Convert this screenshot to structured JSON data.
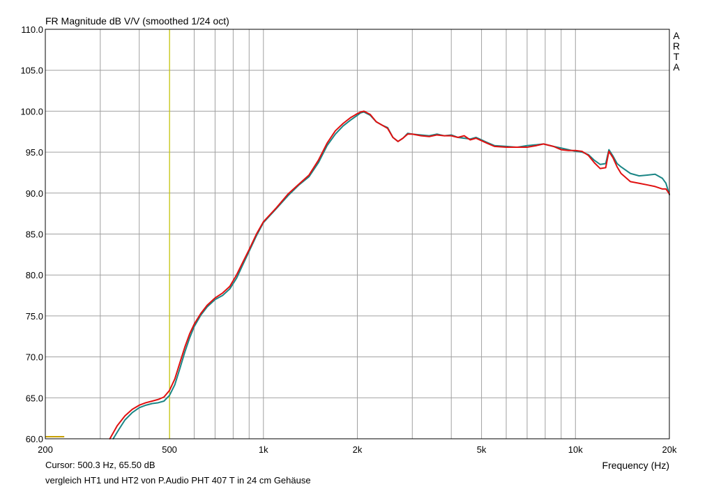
{
  "title": "FR Magnitude dB V/V (smoothed 1/24 oct)",
  "brand": [
    "A",
    "R",
    "T",
    "A"
  ],
  "cursor_text": "Cursor: 500.3 Hz, 65.50 dB",
  "caption": "vergleich HT1 und HT2 von P.Audio PHT 407 T in 24 cm Gehäuse",
  "chart_data": {
    "type": "line",
    "title": "FR Magnitude dB V/V (smoothed 1/24 oct)",
    "xlabel": "Frequency (Hz)",
    "ylabel": "",
    "x_scale": "log",
    "xlim": [
      200,
      20000
    ],
    "ylim": [
      60,
      110
    ],
    "grid": true,
    "x_tick_values": [
      200,
      500,
      1000,
      2000,
      5000,
      10000,
      20000
    ],
    "x_tick_labels": [
      "200",
      "500",
      "1k",
      "2k",
      "5k",
      "10k",
      "20k"
    ],
    "x_minor_grid": [
      300,
      400,
      600,
      700,
      800,
      900,
      3000,
      4000,
      6000,
      7000,
      8000,
      9000
    ],
    "y_tick_values": [
      60,
      65,
      70,
      75,
      80,
      85,
      90,
      95,
      100,
      105,
      110
    ],
    "y_tick_labels": [
      "60.0",
      "65.0",
      "70.0",
      "75.0",
      "80.0",
      "85.0",
      "90.0",
      "95.0",
      "100.0",
      "105.0",
      "110.0"
    ],
    "cursor_x": 500.3,
    "colors": {
      "series_1": "#e01010",
      "series_2": "#1a8585",
      "cursor": "#c8c800",
      "grid": "#a0a0a0",
      "marker": "#c8a000"
    },
    "series": [
      {
        "x": [
          322,
          340,
          360,
          380,
          400,
          420,
          440,
          460,
          480,
          500,
          520,
          540,
          560,
          580,
          600,
          630,
          660,
          700,
          740,
          780,
          820,
          860,
          900,
          950,
          1000,
          1100,
          1200,
          1300,
          1400,
          1500,
          1600,
          1700,
          1800,
          1900,
          2000,
          2050,
          2100,
          2200,
          2300,
          2400,
          2500,
          2600,
          2700,
          2800,
          2900,
          3000,
          3200,
          3400,
          3600,
          3800,
          4000,
          4200,
          4400,
          4600,
          4800,
          5000,
          5200,
          5500,
          6000,
          6500,
          7000,
          7500,
          7900,
          8500,
          9000,
          9500,
          10000,
          10500,
          11000,
          11500,
          12000,
          12500,
          12800,
          13200,
          13600,
          14000,
          15000,
          16000,
          17000,
          18000,
          19000,
          19500,
          20000
        ],
        "y": [
          60.0,
          61.6,
          62.8,
          63.6,
          64.1,
          64.4,
          64.6,
          64.8,
          65.1,
          65.9,
          67.3,
          69.3,
          71.2,
          72.8,
          74.0,
          75.3,
          76.3,
          77.2,
          77.8,
          78.6,
          80.0,
          81.6,
          83.1,
          85.0,
          86.5,
          88.2,
          89.9,
          91.1,
          92.2,
          94.0,
          96.1,
          97.6,
          98.5,
          99.2,
          99.7,
          99.9,
          100.0,
          99.6,
          98.7,
          98.3,
          97.9,
          96.8,
          96.3,
          96.7,
          97.2,
          97.2,
          97.0,
          96.9,
          97.1,
          97.0,
          97.0,
          96.8,
          97.0,
          96.5,
          96.7,
          96.4,
          96.1,
          95.7,
          95.6,
          95.6,
          95.6,
          95.8,
          96.0,
          95.7,
          95.3,
          95.2,
          95.2,
          95.1,
          94.6,
          93.7,
          93.0,
          93.1,
          95.1,
          94.3,
          93.2,
          92.4,
          91.4,
          91.2,
          91.0,
          90.8,
          90.5,
          90.5,
          89.9
        ]
      },
      {
        "x": [
          330,
          345,
          360,
          380,
          400,
          420,
          440,
          460,
          480,
          500,
          520,
          540,
          560,
          580,
          600,
          630,
          660,
          700,
          740,
          780,
          820,
          860,
          900,
          950,
          1000,
          1100,
          1200,
          1300,
          1400,
          1500,
          1600,
          1700,
          1800,
          1900,
          2000,
          2050,
          2100,
          2200,
          2300,
          2400,
          2500,
          2600,
          2700,
          2800,
          2900,
          3000,
          3200,
          3400,
          3600,
          3800,
          4000,
          4200,
          4400,
          4600,
          4800,
          5000,
          5200,
          5500,
          6000,
          6500,
          7000,
          7500,
          7900,
          8500,
          9000,
          9500,
          10000,
          10500,
          11000,
          11500,
          12000,
          12500,
          12800,
          13200,
          13600,
          14000,
          15000,
          16000,
          17000,
          18000,
          19000,
          19500,
          20000
        ],
        "y": [
          60.0,
          61.2,
          62.3,
          63.2,
          63.8,
          64.1,
          64.3,
          64.4,
          64.6,
          65.3,
          66.6,
          68.6,
          70.6,
          72.3,
          73.7,
          75.1,
          76.1,
          77.0,
          77.5,
          78.3,
          79.6,
          81.3,
          82.9,
          84.8,
          86.4,
          88.1,
          89.7,
          91.0,
          92.0,
          93.7,
          95.8,
          97.2,
          98.2,
          98.9,
          99.5,
          99.8,
          99.9,
          99.5,
          98.7,
          98.3,
          98.0,
          96.8,
          96.3,
          96.7,
          97.3,
          97.2,
          97.1,
          97.0,
          97.2,
          97.0,
          97.1,
          96.8,
          96.7,
          96.6,
          96.8,
          96.5,
          96.2,
          95.8,
          95.7,
          95.6,
          95.8,
          95.9,
          96.0,
          95.7,
          95.5,
          95.3,
          95.1,
          95.0,
          94.7,
          94.0,
          93.5,
          93.6,
          95.3,
          94.5,
          93.6,
          93.2,
          92.4,
          92.1,
          92.2,
          92.3,
          91.8,
          91.2,
          89.8
        ]
      }
    ]
  }
}
